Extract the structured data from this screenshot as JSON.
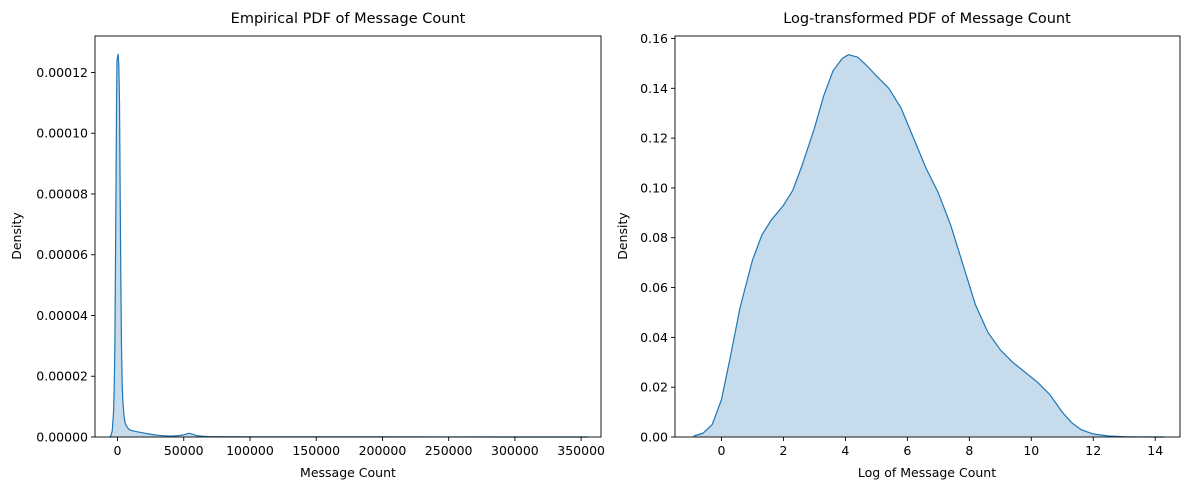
{
  "chart_data": [
    {
      "type": "area",
      "title": "Empirical PDF of Message Count",
      "xlabel": "Message Count",
      "ylabel": "Density",
      "xlim": [
        -17000,
        365000
      ],
      "ylim": [
        0,
        0.000132
      ],
      "xticks": [
        0,
        50000,
        100000,
        150000,
        200000,
        250000,
        300000,
        350000
      ],
      "xtick_labels": [
        "0",
        "50000",
        "100000",
        "150000",
        "200000",
        "250000",
        "300000",
        "350000"
      ],
      "yticks": [
        0,
        2e-05,
        4e-05,
        6e-05,
        8e-05,
        0.0001,
        0.00012
      ],
      "ytick_labels": [
        "0.00000",
        "0.00002",
        "0.00004",
        "0.00006",
        "0.00008",
        "0.00010",
        "0.00012"
      ],
      "grid": false,
      "line_color": "#1f77b4",
      "fill_color": "#c6dbec",
      "series": [
        {
          "name": "Message Count",
          "x": [
            -6000,
            -5000,
            -4000,
            -3000,
            -2500,
            -2000,
            -1500,
            -1000,
            -700,
            -400,
            0,
            500,
            1000,
            1500,
            2000,
            2500,
            3000,
            3500,
            4000,
            5000,
            6000,
            8000,
            10000,
            15000,
            20000,
            25000,
            30000,
            35000,
            40000,
            45000,
            50000,
            52000,
            54000,
            56000,
            58000,
            60000,
            65000,
            70000,
            80000,
            100000,
            150000,
            200000,
            250000,
            300000,
            340000,
            355000
          ],
          "y": [
            0,
            5e-07,
            2e-06,
            8e-06,
            1.6e-05,
            3e-05,
            6e-05,
            9.2e-05,
            0.000111,
            0.000124,
            0.000125,
            0.000126,
            0.000122,
            0.00011,
            8e-05,
            5.2e-05,
            3e-05,
            1.8e-05,
            1.2e-05,
            6.5e-06,
            4.2e-06,
            2.8e-06,
            2.2e-06,
            1.7e-06,
            1.3e-06,
            9e-07,
            6e-07,
            4e-07,
            3e-07,
            4e-07,
            7e-07,
            1e-06,
            1.2e-06,
            1e-06,
            7e-07,
            4e-07,
            2e-07,
            1e-07,
            8e-08,
            5e-08,
            3e-08,
            3e-08,
            2e-08,
            1e-08,
            5e-09,
            0
          ]
        }
      ]
    },
    {
      "type": "area",
      "title": "Log-transformed PDF of Message Count",
      "xlabel": "Log of Message Count",
      "ylabel": "Density",
      "xlim": [
        -1.5,
        14.8
      ],
      "ylim": [
        0,
        0.161
      ],
      "xticks": [
        0,
        2,
        4,
        6,
        8,
        10,
        12,
        14
      ],
      "xtick_labels": [
        "0",
        "2",
        "4",
        "6",
        "8",
        "10",
        "12",
        "14"
      ],
      "yticks": [
        0,
        0.02,
        0.04,
        0.06,
        0.08,
        0.1,
        0.12,
        0.14,
        0.16
      ],
      "ytick_labels": [
        "0.00",
        "0.02",
        "0.04",
        "0.06",
        "0.08",
        "0.10",
        "0.12",
        "0.14",
        "0.16"
      ],
      "grid": false,
      "line_color": "#1f77b4",
      "fill_color": "#c6dbec",
      "series": [
        {
          "name": "log(Message Count)",
          "x": [
            -0.9,
            -0.6,
            -0.3,
            0,
            0.3,
            0.6,
            1,
            1.3,
            1.6,
            2,
            2.3,
            2.6,
            3,
            3.3,
            3.6,
            3.9,
            4.1,
            4.4,
            4.7,
            5,
            5.4,
            5.8,
            6.2,
            6.6,
            7,
            7.4,
            7.8,
            8.2,
            8.6,
            9,
            9.4,
            9.8,
            10.2,
            10.6,
            11,
            11.3,
            11.6,
            12,
            12.5,
            13,
            13.5,
            14,
            14.3
          ],
          "y": [
            0.0004,
            0.0015,
            0.005,
            0.015,
            0.033,
            0.052,
            0.071,
            0.081,
            0.087,
            0.093,
            0.099,
            0.109,
            0.124,
            0.137,
            0.147,
            0.152,
            0.1535,
            0.1525,
            0.149,
            0.145,
            0.14,
            0.132,
            0.12,
            0.108,
            0.098,
            0.085,
            0.069,
            0.053,
            0.042,
            0.035,
            0.03,
            0.026,
            0.022,
            0.017,
            0.01,
            0.0058,
            0.003,
            0.0012,
            0.0004,
            0.0001,
            3e-05,
            1e-05,
            3e-06
          ]
        }
      ]
    }
  ]
}
